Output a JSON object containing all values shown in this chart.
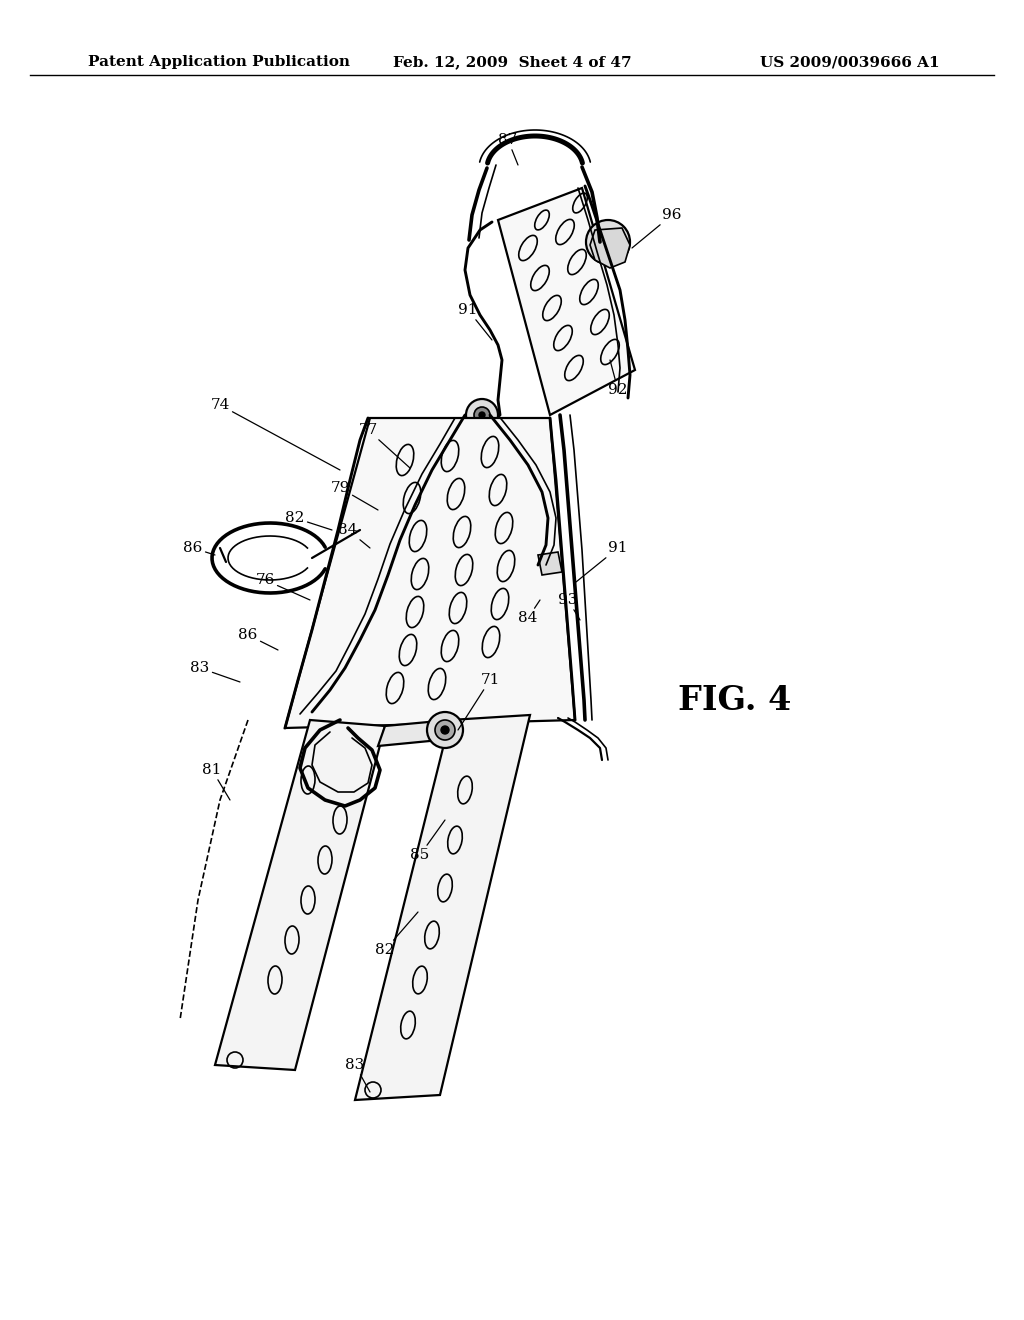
{
  "header_left": "Patent Application Publication",
  "header_middle": "Feb. 12, 2009  Sheet 4 of 47",
  "header_right": "US 2009/0039666 A1",
  "figure_label": "FIG. 4",
  "background_color": "#ffffff",
  "line_color": "#000000",
  "header_fontsize": 11,
  "figure_label_fontsize": 24,
  "annotation_fontsize": 11
}
